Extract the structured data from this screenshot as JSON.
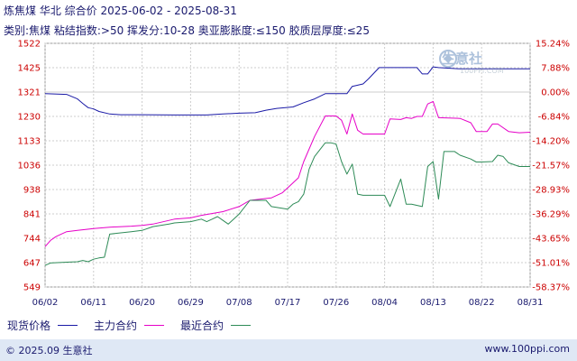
{
  "header": {
    "title": "炼焦煤 华北 综合价 2025-06-02 - 2025-08-31",
    "subtitle": "类别:焦煤 粘结指数:>50 挥发分:10-28 奥亚膨胀度:≤150 胶质层厚度:≤25"
  },
  "watermark": {
    "text": "生意社",
    "url": "100PPI.COM"
  },
  "footer": {
    "left": "© 2025.09 生意社",
    "right": "www.100ppi.com"
  },
  "colors": {
    "spot": "#1a1aa6",
    "main_contract": "#e600c8",
    "recent_contract": "#2e8b57",
    "grid": "#cccccc",
    "axis_text": "#cc0000"
  },
  "chart_data": {
    "type": "line",
    "y_left_ticks": [
      "1522",
      "1425",
      "1321",
      "1230",
      "1133",
      "1036",
      "938",
      "841",
      "744",
      "647",
      "549"
    ],
    "y_right_ticks": [
      "15.24%",
      "7.88%",
      "0.00%",
      "-6.84%",
      "-14.20%",
      "-21.57%",
      "-28.93%",
      "-36.29%",
      "-43.65%",
      "-51.01%",
      "-58.37%"
    ],
    "x_ticks": [
      "06/02",
      "06/11",
      "06/20",
      "06/29",
      "07/08",
      "07/17",
      "07/26",
      "08/04",
      "08/13",
      "08/22",
      "08/31"
    ],
    "ylim": [
      549,
      1522
    ],
    "grid": true,
    "legend_position": "bottom-left",
    "series": [
      {
        "name": "现货价格",
        "color": "#1a1aa6",
        "points": [
          [
            "06/02",
            1321
          ],
          [
            "06/06",
            1318
          ],
          [
            "06/08",
            1300
          ],
          [
            "06/09",
            1282
          ],
          [
            "06/10",
            1265
          ],
          [
            "06/11",
            1260
          ],
          [
            "06/12",
            1250
          ],
          [
            "06/14",
            1240
          ],
          [
            "06/16",
            1237
          ],
          [
            "06/20",
            1237
          ],
          [
            "06/26",
            1236
          ],
          [
            "07/02",
            1236
          ],
          [
            "07/05",
            1240
          ],
          [
            "07/08",
            1243
          ],
          [
            "07/11",
            1245
          ],
          [
            "07/13",
            1255
          ],
          [
            "07/15",
            1262
          ],
          [
            "07/18",
            1268
          ],
          [
            "07/20",
            1285
          ],
          [
            "07/22",
            1300
          ],
          [
            "07/24",
            1321
          ],
          [
            "07/26",
            1321
          ],
          [
            "07/28",
            1321
          ],
          [
            "07/29",
            1350
          ],
          [
            "07/31",
            1360
          ],
          [
            "08/01",
            1380
          ],
          [
            "08/03",
            1425
          ],
          [
            "08/08",
            1425
          ],
          [
            "08/10",
            1425
          ],
          [
            "08/11",
            1400
          ],
          [
            "08/12",
            1400
          ],
          [
            "08/13",
            1428
          ],
          [
            "08/14",
            1425
          ],
          [
            "08/18",
            1420
          ],
          [
            "08/31",
            1420
          ]
        ]
      },
      {
        "name": "主力合约",
        "color": "#e600c8",
        "points": [
          [
            "06/02",
            710
          ],
          [
            "06/03",
            735
          ],
          [
            "06/04",
            750
          ],
          [
            "06/05",
            760
          ],
          [
            "06/06",
            770
          ],
          [
            "06/08",
            775
          ],
          [
            "06/11",
            782
          ],
          [
            "06/14",
            788
          ],
          [
            "06/18",
            792
          ],
          [
            "06/20",
            795
          ],
          [
            "06/22",
            800
          ],
          [
            "06/26",
            820
          ],
          [
            "06/29",
            825
          ],
          [
            "07/01",
            835
          ],
          [
            "07/05",
            850
          ],
          [
            "07/08",
            870
          ],
          [
            "07/10",
            895
          ],
          [
            "07/14",
            905
          ],
          [
            "07/16",
            925
          ],
          [
            "07/18",
            965
          ],
          [
            "07/19",
            985
          ],
          [
            "07/20",
            1050
          ],
          [
            "07/22",
            1150
          ],
          [
            "07/24",
            1232
          ],
          [
            "07/26",
            1232
          ],
          [
            "07/27",
            1215
          ],
          [
            "07/28",
            1160
          ],
          [
            "07/29",
            1240
          ],
          [
            "07/30",
            1175
          ],
          [
            "07/31",
            1160
          ],
          [
            "08/04",
            1160
          ],
          [
            "08/05",
            1220
          ],
          [
            "08/07",
            1218
          ],
          [
            "08/08",
            1225
          ],
          [
            "08/09",
            1222
          ],
          [
            "08/10",
            1230
          ],
          [
            "08/11",
            1230
          ],
          [
            "08/12",
            1280
          ],
          [
            "08/13",
            1290
          ],
          [
            "08/14",
            1225
          ],
          [
            "08/18",
            1222
          ],
          [
            "08/20",
            1205
          ],
          [
            "08/21",
            1170
          ],
          [
            "08/23",
            1170
          ],
          [
            "08/24",
            1200
          ],
          [
            "08/25",
            1200
          ],
          [
            "08/27",
            1170
          ],
          [
            "08/29",
            1165
          ],
          [
            "08/31",
            1167
          ]
        ]
      },
      {
        "name": "最近合约",
        "color": "#2e8b57",
        "points": [
          [
            "06/02",
            635
          ],
          [
            "06/03",
            645
          ],
          [
            "06/06",
            648
          ],
          [
            "06/08",
            650
          ],
          [
            "06/09",
            655
          ],
          [
            "06/10",
            650
          ],
          [
            "06/11",
            660
          ],
          [
            "06/12",
            665
          ],
          [
            "06/13",
            668
          ],
          [
            "06/14",
            760
          ],
          [
            "06/18",
            770
          ],
          [
            "06/20",
            775
          ],
          [
            "06/22",
            790
          ],
          [
            "06/25",
            800
          ],
          [
            "06/26",
            805
          ],
          [
            "06/29",
            810
          ],
          [
            "07/01",
            820
          ],
          [
            "07/02",
            810
          ],
          [
            "07/03",
            820
          ],
          [
            "07/04",
            830
          ],
          [
            "07/05",
            815
          ],
          [
            "07/06",
            800
          ],
          [
            "07/08",
            840
          ],
          [
            "07/10",
            895
          ],
          [
            "07/13",
            895
          ],
          [
            "07/14",
            870
          ],
          [
            "07/17",
            860
          ],
          [
            "07/18",
            880
          ],
          [
            "07/19",
            890
          ],
          [
            "07/20",
            920
          ],
          [
            "07/21",
            1020
          ],
          [
            "07/22",
            1070
          ],
          [
            "07/24",
            1125
          ],
          [
            "07/25",
            1125
          ],
          [
            "07/26",
            1120
          ],
          [
            "07/27",
            1050
          ],
          [
            "07/28",
            1000
          ],
          [
            "07/29",
            1040
          ],
          [
            "07/30",
            920
          ],
          [
            "07/31",
            915
          ],
          [
            "08/04",
            915
          ],
          [
            "08/05",
            870
          ],
          [
            "08/07",
            980
          ],
          [
            "08/08",
            880
          ],
          [
            "08/09",
            880
          ],
          [
            "08/11",
            870
          ],
          [
            "08/12",
            1030
          ],
          [
            "08/13",
            1050
          ],
          [
            "08/14",
            900
          ],
          [
            "08/15",
            1090
          ],
          [
            "08/17",
            1090
          ],
          [
            "08/18",
            1075
          ],
          [
            "08/20",
            1060
          ],
          [
            "08/21",
            1048
          ],
          [
            "08/22",
            1048
          ],
          [
            "08/24",
            1050
          ],
          [
            "08/25",
            1075
          ],
          [
            "08/26",
            1070
          ],
          [
            "08/27",
            1045
          ],
          [
            "08/29",
            1030
          ],
          [
            "08/31",
            1030
          ]
        ]
      }
    ]
  }
}
